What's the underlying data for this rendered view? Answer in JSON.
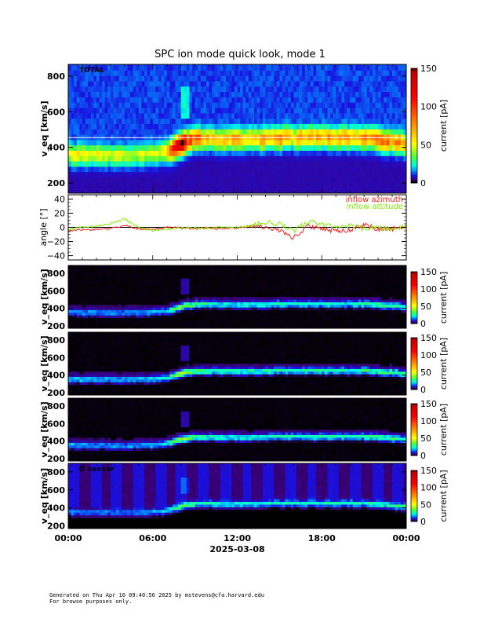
{
  "title": "SPC ion mode quick look, mode 1",
  "footer": {
    "line1": "Generated on Thu Apr 10 09:40:56 2025 by mstevens@cfa.harvard.edu",
    "line2": "For browse purposes only."
  },
  "xaxis": {
    "tick_labels": [
      "00:00",
      "06:00",
      "12:00",
      "18:00",
      "00:00"
    ],
    "date_label": "2025-03-08"
  },
  "colors": {
    "azimuth": "#ff1a1a",
    "attitude": "#80f000"
  },
  "chart_data": [
    {
      "type": "heatmap",
      "panel_label": "TOTAL",
      "ylabel": "v_eq [km/s]",
      "ylim": [
        143,
        866
      ],
      "yticks": [
        "200",
        "400",
        "600",
        "800"
      ],
      "colorbar": {
        "label": "current [pA]",
        "range": [
          0,
          150
        ],
        "ticks": [
          "0",
          "50",
          "100",
          "150"
        ]
      },
      "time_hours": [
        0,
        1,
        2,
        3,
        4,
        5,
        6,
        7,
        8,
        9,
        10,
        11,
        12,
        13,
        14,
        15,
        16,
        17,
        18,
        19,
        20,
        21,
        22,
        23,
        24
      ],
      "core_speed_kms": [
        360,
        355,
        355,
        355,
        350,
        355,
        360,
        375,
        420,
        450,
        450,
        445,
        445,
        445,
        450,
        455,
        455,
        455,
        455,
        455,
        455,
        455,
        445,
        435,
        420
      ],
      "peak_current_pA": [
        40,
        42,
        40,
        38,
        36,
        38,
        42,
        48,
        130,
        80,
        60,
        58,
        58,
        60,
        62,
        64,
        62,
        62,
        64,
        66,
        66,
        66,
        70,
        72,
        60
      ]
    },
    {
      "type": "line",
      "ylabel": "angle [°]",
      "ylim": [
        -46,
        46
      ],
      "yticks": [
        "40",
        "20",
        "0",
        "−20",
        "−40"
      ],
      "legend": [
        "inflow azimuth",
        "inflow attitude"
      ],
      "legend_position": "top-right",
      "time_hours": [
        0,
        1,
        2,
        3,
        4,
        5,
        6,
        7,
        8,
        9,
        10,
        11,
        12,
        13,
        14,
        15,
        16,
        17,
        18,
        19,
        20,
        21,
        22,
        23,
        24
      ],
      "series": [
        {
          "name": "inflow azimuth",
          "values": [
            -5,
            -3,
            -3,
            -2,
            3,
            -2,
            -3,
            0,
            -1,
            -2,
            -1,
            -2,
            -1,
            2,
            0,
            -5,
            -15,
            2,
            -3,
            -5,
            -3,
            3,
            -2,
            -2,
            2
          ]
        },
        {
          "name": "inflow attitude",
          "values": [
            -3,
            0,
            2,
            5,
            12,
            0,
            -5,
            -3,
            0,
            -1,
            -1,
            0,
            0,
            3,
            7,
            5,
            -5,
            8,
            5,
            0,
            2,
            -2,
            -1,
            -3,
            1
          ]
        }
      ]
    },
    {
      "type": "heatmap",
      "panel_label": "",
      "ylabel": "v_eq [km/s]",
      "ylim": [
        173,
        890
      ],
      "yticks": [
        "200",
        "400",
        "600",
        "800"
      ],
      "colorbar": {
        "label": "current [pA]",
        "range": [
          0,
          150
        ],
        "ticks": [
          "0",
          "50",
          "100",
          "150"
        ]
      },
      "time_hours": [
        0,
        1,
        2,
        3,
        4,
        5,
        6,
        7,
        8,
        9,
        10,
        11,
        12,
        13,
        14,
        15,
        16,
        17,
        18,
        19,
        20,
        21,
        22,
        23,
        24
      ],
      "core_speed_kms": [
        360,
        355,
        355,
        355,
        350,
        355,
        360,
        375,
        420,
        450,
        450,
        445,
        445,
        445,
        450,
        455,
        455,
        455,
        455,
        455,
        455,
        455,
        445,
        435,
        420
      ],
      "peak_current_pA": [
        14,
        14,
        13,
        13,
        12,
        13,
        15,
        18,
        40,
        28,
        22,
        20,
        20,
        21,
        22,
        22,
        21,
        21,
        22,
        22,
        22,
        23,
        24,
        25,
        22
      ]
    },
    {
      "type": "heatmap",
      "panel_label": "",
      "ylabel": "v_eq [km/s]",
      "ylim": [
        173,
        890
      ],
      "yticks": [
        "200",
        "400",
        "600",
        "800"
      ],
      "colorbar": {
        "label": "current [pA]",
        "range": [
          0,
          150
        ],
        "ticks": [
          "0",
          "50",
          "100",
          "150"
        ]
      },
      "time_hours": [
        0,
        1,
        2,
        3,
        4,
        5,
        6,
        7,
        8,
        9,
        10,
        11,
        12,
        13,
        14,
        15,
        16,
        17,
        18,
        19,
        20,
        21,
        22,
        23,
        24
      ],
      "core_speed_kms": [
        360,
        355,
        355,
        355,
        350,
        355,
        360,
        375,
        420,
        450,
        450,
        445,
        445,
        445,
        450,
        455,
        455,
        455,
        455,
        455,
        455,
        455,
        445,
        435,
        420
      ],
      "peak_current_pA": [
        16,
        16,
        15,
        15,
        14,
        15,
        17,
        20,
        42,
        30,
        24,
        22,
        22,
        23,
        24,
        24,
        23,
        23,
        24,
        24,
        24,
        25,
        26,
        27,
        24
      ]
    },
    {
      "type": "heatmap",
      "panel_label": "",
      "ylabel": "v_eq [km/s]",
      "ylim": [
        173,
        890
      ],
      "yticks": [
        "200",
        "400",
        "600",
        "800"
      ],
      "colorbar": {
        "label": "current [pA]",
        "range": [
          0,
          150
        ],
        "ticks": [
          "0",
          "50",
          "100",
          "150"
        ]
      },
      "time_hours": [
        0,
        1,
        2,
        3,
        4,
        5,
        6,
        7,
        8,
        9,
        10,
        11,
        12,
        13,
        14,
        15,
        16,
        17,
        18,
        19,
        20,
        21,
        22,
        23,
        24
      ],
      "core_speed_kms": [
        360,
        355,
        355,
        355,
        350,
        355,
        360,
        375,
        420,
        450,
        450,
        445,
        445,
        445,
        450,
        455,
        455,
        455,
        455,
        455,
        455,
        455,
        445,
        435,
        420
      ],
      "peak_current_pA": [
        15,
        15,
        14,
        14,
        13,
        14,
        16,
        19,
        40,
        29,
        23,
        21,
        21,
        22,
        23,
        23,
        22,
        22,
        23,
        23,
        23,
        24,
        25,
        26,
        23
      ]
    },
    {
      "type": "heatmap",
      "panel_label": "D sensor",
      "ylabel": "v_eq [km/s]",
      "ylim": [
        170,
        895
      ],
      "yticks": [
        "200",
        "400",
        "600",
        "800"
      ],
      "colorbar": {
        "label": "current [pA]",
        "range": [
          0,
          150
        ],
        "ticks": [
          "0",
          "50",
          "100",
          "150"
        ]
      },
      "time_hours": [
        0,
        1,
        2,
        3,
        4,
        5,
        6,
        7,
        8,
        9,
        10,
        11,
        12,
        13,
        14,
        15,
        16,
        17,
        18,
        19,
        20,
        21,
        22,
        23,
        24
      ],
      "core_speed_kms": [
        360,
        355,
        355,
        355,
        350,
        355,
        360,
        375,
        420,
        450,
        450,
        445,
        445,
        445,
        450,
        455,
        455,
        455,
        455,
        455,
        455,
        455,
        445,
        435,
        420
      ],
      "peak_current_pA": [
        14,
        14,
        13,
        13,
        12,
        13,
        15,
        18,
        38,
        27,
        21,
        20,
        20,
        21,
        22,
        22,
        21,
        21,
        22,
        22,
        22,
        23,
        24,
        25,
        28
      ]
    }
  ]
}
